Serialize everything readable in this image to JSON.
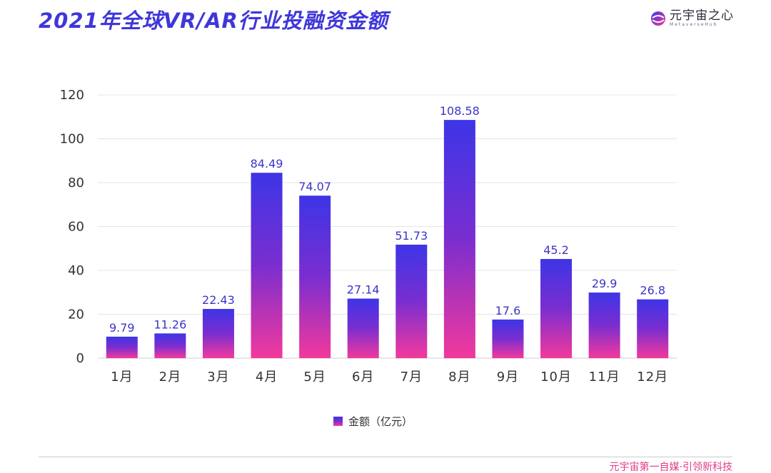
{
  "header": {
    "title": "2021年全球VR/AR行业投融资金额",
    "brand_name": "元宇宙之心",
    "brand_sub": "MetaverseHub",
    "brand_icon": "brand-logo-icon"
  },
  "footer": {
    "text": "元宇宙第一自媒·引领新科技"
  },
  "colors": {
    "bar_top": "#3d35e6",
    "bar_mid": "#7a2ed0",
    "bar_bottom": "#f2399c",
    "label": "#3d35c8",
    "axis_text": "#333333",
    "grid": "#e4e4e4"
  },
  "chart_data": {
    "type": "bar",
    "title": "",
    "xlabel": "",
    "ylabel": "",
    "categories": [
      "1月",
      "2月",
      "3月",
      "4月",
      "5月",
      "6月",
      "7月",
      "8月",
      "9月",
      "10月",
      "11月",
      "12月"
    ],
    "series": [
      {
        "name": "金额（亿元）",
        "values": [
          9.79,
          11.26,
          22.43,
          84.49,
          74.07,
          27.14,
          51.73,
          108.58,
          17.6,
          45.2,
          29.9,
          26.8
        ]
      }
    ],
    "data_labels": [
      "9.79",
      "11.26",
      "22.43",
      "84.49",
      "74.07",
      "27.14",
      "51.73",
      "108.58",
      "17.6",
      "45.2",
      "29.9",
      "26.8"
    ],
    "yticks": [
      0,
      20,
      40,
      60,
      80,
      100,
      120
    ],
    "ylim": [
      0,
      120
    ],
    "grid": true,
    "legend_position": "bottom-center"
  }
}
